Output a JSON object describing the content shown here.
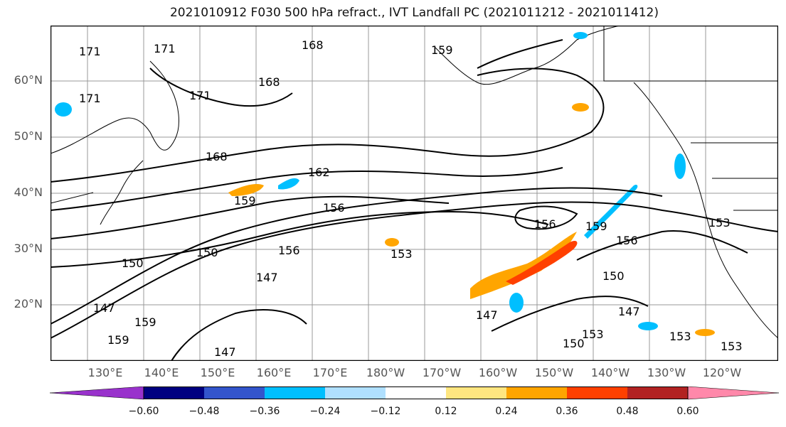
{
  "title": "2021010912 F030 500 hPa refract., IVT Landfall PC (2021011212 - 2021011412)",
  "map": {
    "lat_labels": [
      "60°N",
      "50°N",
      "40°N",
      "30°N",
      "20°N"
    ],
    "lon_labels": [
      "130°E",
      "140°E",
      "150°E",
      "160°E",
      "170°E",
      "180°W",
      "170°W",
      "160°W",
      "150°W",
      "140°W",
      "130°W",
      "120°W"
    ],
    "contour_labels": [
      "171",
      "171",
      "168",
      "168",
      "171",
      "171",
      "168",
      "162",
      "159",
      "156",
      "159",
      "156",
      "153",
      "156",
      "150",
      "147",
      "153",
      "156",
      "159",
      "150",
      "147",
      "147",
      "150",
      "153",
      "159",
      "159",
      "147",
      "153",
      "147",
      "150",
      "153"
    ]
  },
  "colorbar": {
    "colors": [
      "#9932cc",
      "#000080",
      "#3355cc",
      "#00bfff",
      "#b0e0ff",
      "#ffffff",
      "#ffe680",
      "#ffa500",
      "#ff4000",
      "#b22222",
      "#ff88aa"
    ],
    "tick_labels": [
      "−0.60",
      "−0.48",
      "−0.36",
      "−0.24",
      "−0.12",
      "0.12",
      "0.24",
      "0.36",
      "0.48",
      "0.60"
    ]
  }
}
